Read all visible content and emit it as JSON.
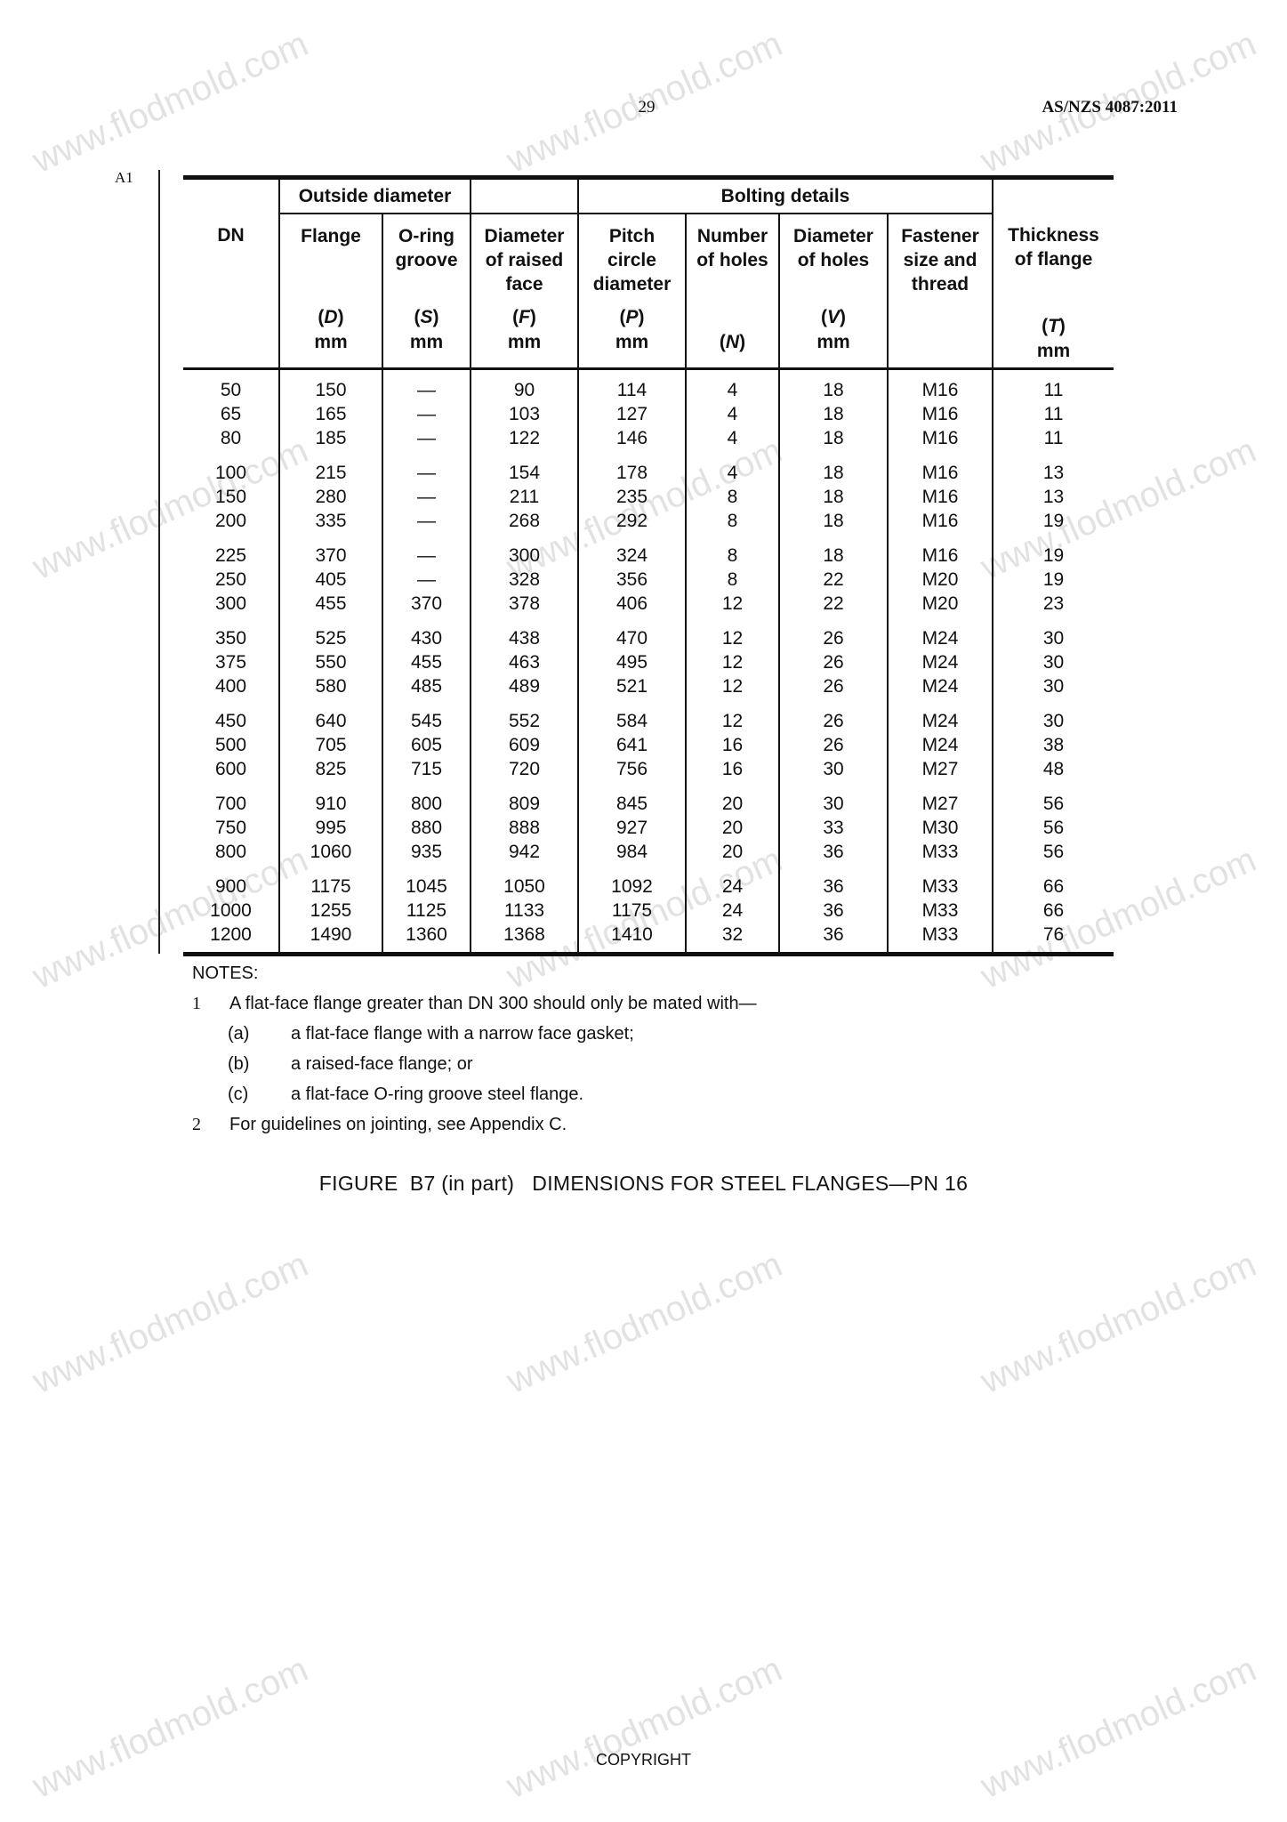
{
  "header": {
    "page_number": "29",
    "standard": "AS/NZS 4087:2011",
    "amendment_mark": "A1"
  },
  "table": {
    "group_headers": {
      "outside_diameter": "Outside diameter",
      "bolting_details": "Bolting details"
    },
    "columns": [
      {
        "title": "DN",
        "symbol": "",
        "unit": ""
      },
      {
        "title": "Flange",
        "symbol": "D",
        "unit": "mm"
      },
      {
        "title": "O-ring groove",
        "symbol": "S",
        "unit": "mm"
      },
      {
        "title": "Diameter of raised face",
        "symbol": "F",
        "unit": "mm"
      },
      {
        "title": "Pitch circle diameter",
        "symbol": "P",
        "unit": "mm"
      },
      {
        "title": "Number of holes",
        "symbol": "N",
        "unit": ""
      },
      {
        "title": "Diameter of holes",
        "symbol": "V",
        "unit": "mm"
      },
      {
        "title": "Fastener size and thread",
        "symbol": "",
        "unit": ""
      },
      {
        "title": "Thickness of flange",
        "symbol": "T",
        "unit": "mm"
      }
    ],
    "row_groups": [
      [
        [
          "50",
          "150",
          "—",
          "90",
          "114",
          "4",
          "18",
          "M16",
          "11"
        ],
        [
          "65",
          "165",
          "—",
          "103",
          "127",
          "4",
          "18",
          "M16",
          "11"
        ],
        [
          "80",
          "185",
          "—",
          "122",
          "146",
          "4",
          "18",
          "M16",
          "11"
        ]
      ],
      [
        [
          "100",
          "215",
          "—",
          "154",
          "178",
          "4",
          "18",
          "M16",
          "13"
        ],
        [
          "150",
          "280",
          "—",
          "211",
          "235",
          "8",
          "18",
          "M16",
          "13"
        ],
        [
          "200",
          "335",
          "—",
          "268",
          "292",
          "8",
          "18",
          "M16",
          "19"
        ]
      ],
      [
        [
          "225",
          "370",
          "—",
          "300",
          "324",
          "8",
          "18",
          "M16",
          "19"
        ],
        [
          "250",
          "405",
          "—",
          "328",
          "356",
          "8",
          "22",
          "M20",
          "19"
        ],
        [
          "300",
          "455",
          "370",
          "378",
          "406",
          "12",
          "22",
          "M20",
          "23"
        ]
      ],
      [
        [
          "350",
          "525",
          "430",
          "438",
          "470",
          "12",
          "26",
          "M24",
          "30"
        ],
        [
          "375",
          "550",
          "455",
          "463",
          "495",
          "12",
          "26",
          "M24",
          "30"
        ],
        [
          "400",
          "580",
          "485",
          "489",
          "521",
          "12",
          "26",
          "M24",
          "30"
        ]
      ],
      [
        [
          "450",
          "640",
          "545",
          "552",
          "584",
          "12",
          "26",
          "M24",
          "30"
        ],
        [
          "500",
          "705",
          "605",
          "609",
          "641",
          "16",
          "26",
          "M24",
          "38"
        ],
        [
          "600",
          "825",
          "715",
          "720",
          "756",
          "16",
          "30",
          "M27",
          "48"
        ]
      ],
      [
        [
          "700",
          "910",
          "800",
          "809",
          "845",
          "20",
          "30",
          "M27",
          "56"
        ],
        [
          "750",
          "995",
          "880",
          "888",
          "927",
          "20",
          "33",
          "M30",
          "56"
        ],
        [
          "800",
          "1060",
          "935",
          "942",
          "984",
          "20",
          "36",
          "M33",
          "56"
        ]
      ],
      [
        [
          "900",
          "1175",
          "1045",
          "1050",
          "1092",
          "24",
          "36",
          "M33",
          "66"
        ],
        [
          "1000",
          "1255",
          "1125",
          "1133",
          "1175",
          "24",
          "36",
          "M33",
          "66"
        ],
        [
          "1200",
          "1490",
          "1360",
          "1368",
          "1410",
          "32",
          "36",
          "M33",
          "76"
        ]
      ]
    ]
  },
  "notes": {
    "heading": "NOTES:",
    "items": [
      {
        "num": "1",
        "text": "A flat-face flange greater than DN 300 should only be mated with—",
        "sub": [
          {
            "letter": "(a)",
            "text": "a flat-face flange with a narrow face gasket;"
          },
          {
            "letter": "(b)",
            "text": "a raised-face flange; or"
          },
          {
            "letter": "(c)",
            "text": "a flat-face O-ring groove steel flange."
          }
        ]
      },
      {
        "num": "2",
        "text": "For guidelines on jointing, see Appendix C."
      }
    ]
  },
  "caption": "FIGURE  B7 (in part)   DIMENSIONS FOR STEEL FLANGES—PN 16",
  "footer": "COPYRIGHT",
  "watermark": "www.flodmold.com"
}
